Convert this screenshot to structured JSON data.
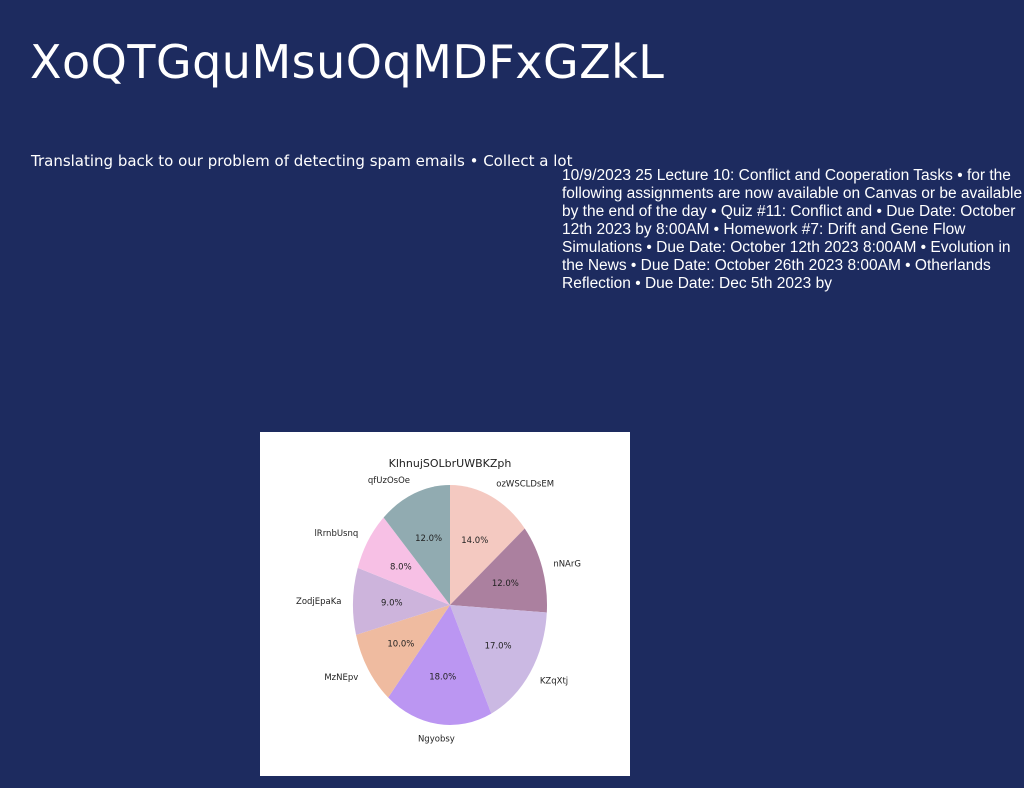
{
  "slide": {
    "title": "XoQTGquMsuOqMDFxGZkL",
    "subtitle": "Translating back to our problem of detecting spam emails • Collect a lot",
    "notes": "10/9/2023 25 Lecture 10: Conflict and Cooperation Tasks • for the following assignments are now available on Canvas or be available by the end of the day • Quiz #11: Conflict and • Due Date: October 12th 2023 by 8:00AM • Homework #7: Drift and Gene Flow Simulations • Due Date: October 12th 2023 8:00AM • Evolution in the News • Due Date: October 26th 2023 8:00AM • Otherlands Reflection • Due Date: Dec 5th 2023 by"
  },
  "chart_data": {
    "type": "pie",
    "title": "KlhnujSOLbrUWBKZph",
    "categories": [
      "ozWSCLDsEM",
      "nNArG",
      "KZqXtj",
      "Ngyobsy",
      "MzNEpv",
      "ZodjEpaKa",
      "lRrnbUsnq",
      "qfUzOsOe"
    ],
    "values": [
      14.0,
      12.0,
      17.0,
      18.0,
      10.0,
      9.0,
      8.0,
      12.0
    ],
    "value_labels": [
      "14.0%",
      "12.0%",
      "17.0%",
      "18.0%",
      "10.0%",
      "9.0%",
      "8.0%",
      "12.0%"
    ],
    "colors": [
      "#f4c9c1",
      "#ab809f",
      "#cbb9e3",
      "#bb96f2",
      "#efbba0",
      "#cdb4dc",
      "#f7c0e5",
      "#91abb1"
    ],
    "start_angle_deg": 90,
    "direction": "clockwise"
  }
}
